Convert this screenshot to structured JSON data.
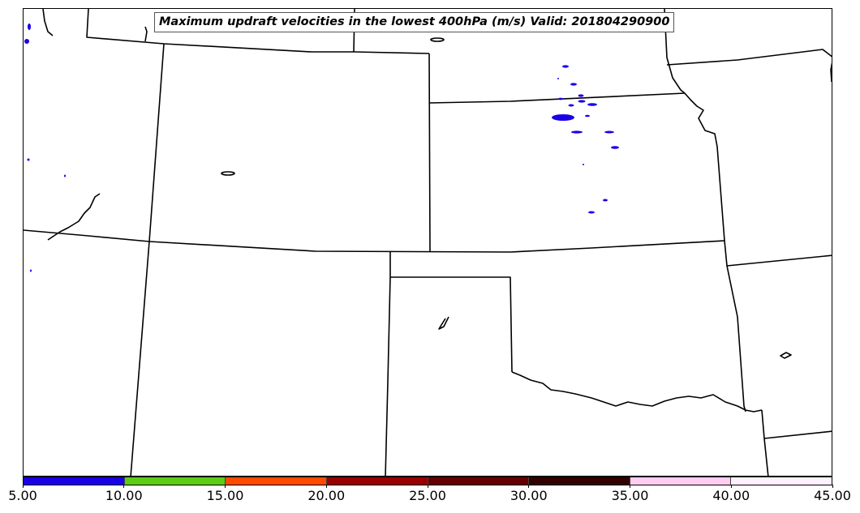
{
  "title": "Maximum updraft velocities in the lowest 400hPa (m/s) Valid: 201804290900",
  "colorbar": {
    "ticks": [
      "5.00",
      "10.00",
      "15.00",
      "20.00",
      "25.00",
      "30.00",
      "35.00",
      "40.00",
      "45.00"
    ],
    "colors": [
      "#1a00e6",
      "#5ccc16",
      "#ff4a00",
      "#990000",
      "#660000",
      "#330000",
      "#ffccf2",
      "#fff0ff"
    ]
  },
  "colors": {
    "boundary": "#000000",
    "updraft": "#1a00e6"
  }
}
